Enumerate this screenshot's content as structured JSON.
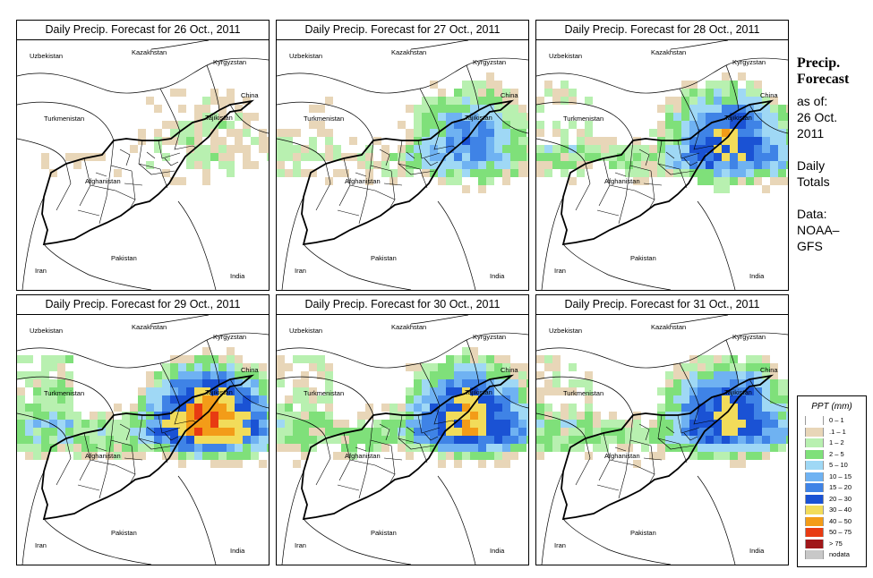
{
  "panels": [
    {
      "title": "Daily Precip. Forecast for  26 Oct., 2011",
      "intensity": 0.2
    },
    {
      "title": "Daily Precip. Forecast for  27 Oct., 2011",
      "intensity": 0.55
    },
    {
      "title": "Daily Precip. Forecast for  28 Oct., 2011",
      "intensity": 0.75
    },
    {
      "title": "Daily Precip. Forecast for  29 Oct., 2011",
      "intensity": 1.0
    },
    {
      "title": "Daily Precip. Forecast for  30 Oct., 2011",
      "intensity": 0.85
    },
    {
      "title": "Daily Precip. Forecast for  31 Oct., 2011",
      "intensity": 0.8
    }
  ],
  "place_labels": {
    "kazakhstan": "Kazakhstan",
    "uzbekistan": "Uzbekistan",
    "kyrgyzstan": "Kyrgyzstan",
    "china": "China",
    "turkmenistan": "Turkmenistan",
    "tajikistan": "Tajikistan",
    "afghanistan": "Afghanistan",
    "iran": "Iran",
    "pakistan": "Pakistan",
    "india": "India"
  },
  "sidebar": {
    "title_line1": "Precip.",
    "title_line2": "Forecast",
    "asof": "as of:",
    "date_line1": "26 Oct.",
    "date_line2": "2011",
    "totals_line1": "Daily",
    "totals_line2": "Totals",
    "data_line1": "Data:",
    "data_line2": "NOAA–",
    "data_line3": "GFS"
  },
  "legend": {
    "title": "PPT (mm)",
    "classes": [
      {
        "label": "0 – 1",
        "color": "#ffffff"
      },
      {
        "label": ".1 – 1",
        "color": "#e8d6b8"
      },
      {
        "label": "1 – 2",
        "color": "#b8f0b0"
      },
      {
        "label": "2 – 5",
        "color": "#7fe07a"
      },
      {
        "label": "5 – 10",
        "color": "#9fd8f5"
      },
      {
        "label": "10 – 15",
        "color": "#6fb2f2"
      },
      {
        "label": "15 – 20",
        "color": "#3f83e6"
      },
      {
        "label": "20 – 30",
        "color": "#1a52d4"
      },
      {
        "label": "30 – 40",
        "color": "#f2dc5a"
      },
      {
        "label": "40 – 50",
        "color": "#f39c18"
      },
      {
        "label": "50 – 75",
        "color": "#e83b12"
      },
      {
        "label": "> 75",
        "color": "#a0181a"
      },
      {
        "label": "nodata",
        "color": "#c8c8c8"
      }
    ]
  }
}
